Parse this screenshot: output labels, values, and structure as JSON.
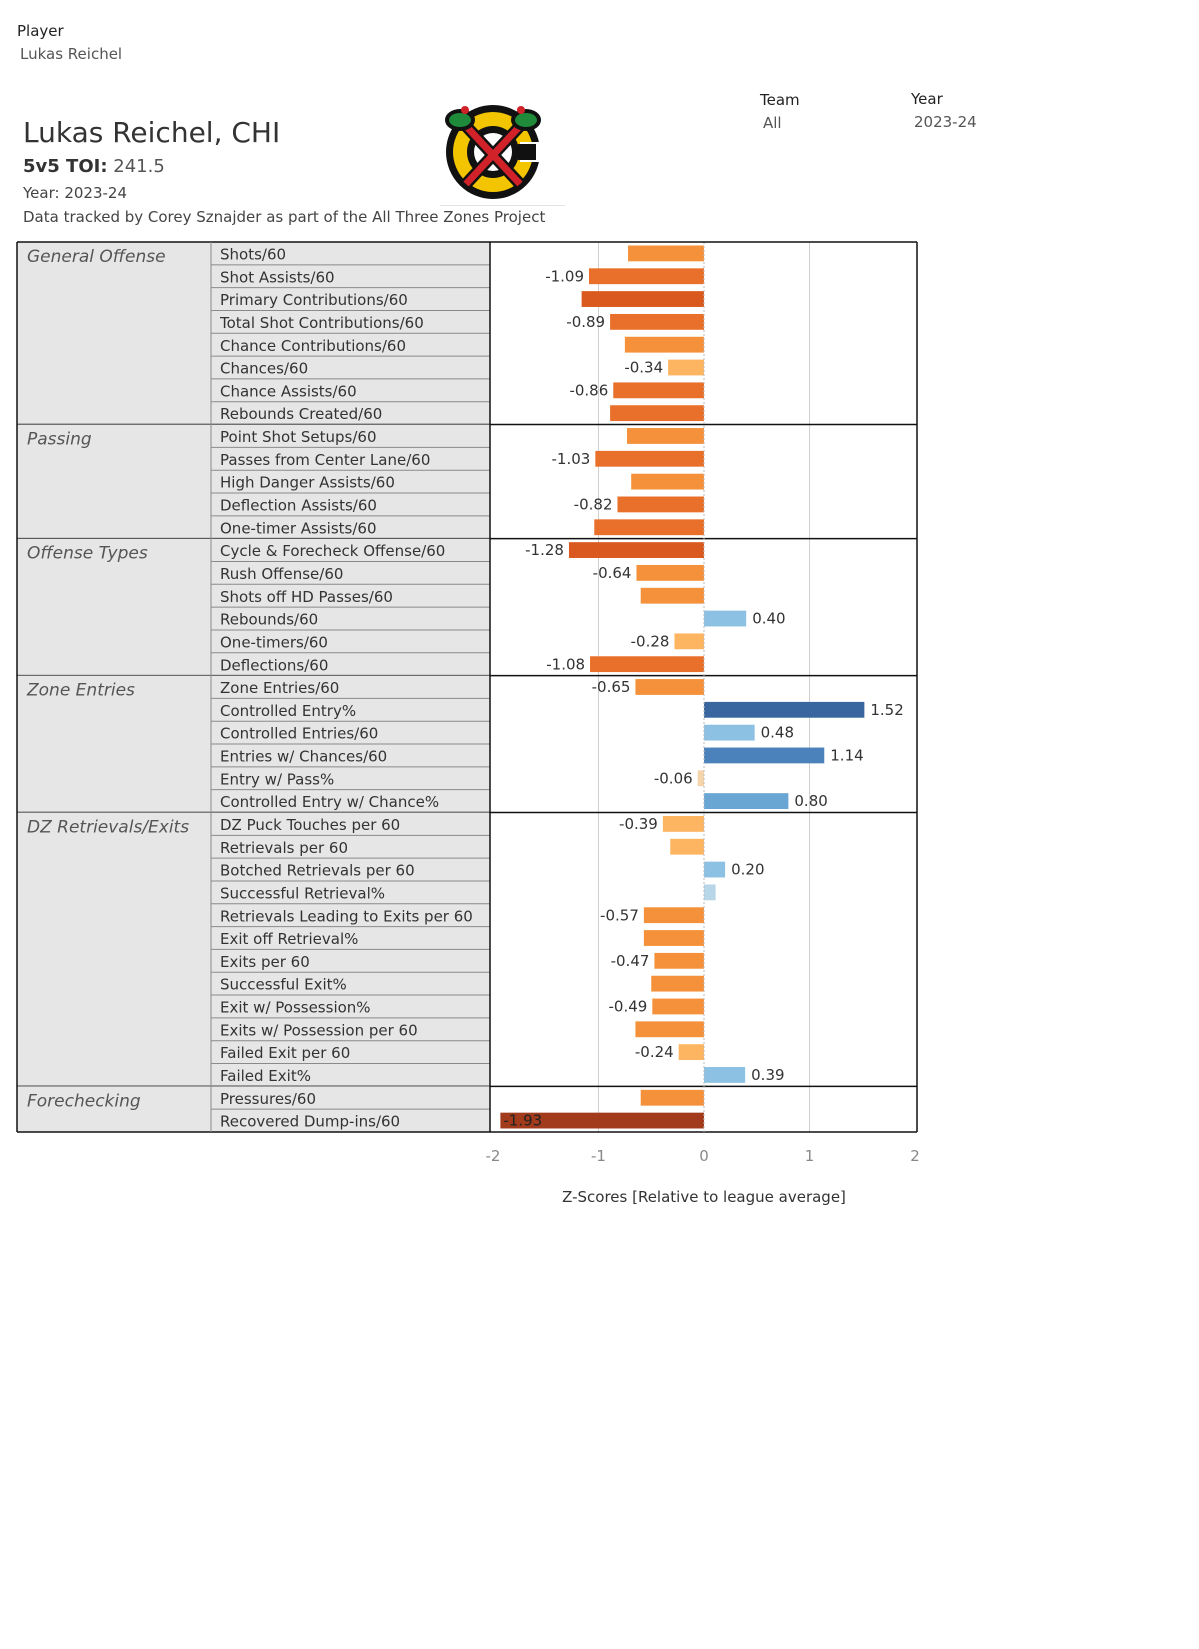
{
  "filters": {
    "player": {
      "label": "Player",
      "value": "Lukas Reichel"
    },
    "team": {
      "label": "Team",
      "value": "All"
    },
    "year": {
      "label": "Year",
      "value": "2023-24"
    }
  },
  "header": {
    "title": "Lukas Reichel, CHI",
    "toi_label": "5v5 TOI:",
    "toi_value": "241.5",
    "year_line": "Year: 2023-24",
    "credit": "Data tracked by Corey Sznajder as part of the All Three Zones Project"
  },
  "logo": {
    "icon": "chicago-blackhawks-logo-icon"
  },
  "colors": {
    "neg_strong": "#a23b1c",
    "neg_dark": "#d9591f",
    "neg_mid": "#e8702a",
    "neg_light": "#f4913a",
    "neg_pale": "#fdb562",
    "neg_faint": "#f5d3ab",
    "pos_faint": "#b7d6e8",
    "pos_light": "#8cc1e3",
    "pos_mid": "#6aa6d3",
    "pos_dark": "#4c82bc",
    "pos_strong": "#39669f",
    "section_bg": "#e6e6e6",
    "grid": "#d0d0d0"
  },
  "chart_data": {
    "type": "bar",
    "orientation": "horizontal",
    "xlabel": "Z-Scores [Relative to league average]",
    "xlim": [
      -2,
      2
    ],
    "xticks": [
      -2,
      -1,
      0,
      1,
      2
    ],
    "grid": true,
    "sections": [
      {
        "name": "General Offense",
        "metrics": [
          {
            "label": "Shots/60",
            "value": -0.72,
            "shown": null
          },
          {
            "label": "Shot Assists/60",
            "value": -1.09,
            "shown": "-1.09"
          },
          {
            "label": "Primary Contributions/60",
            "value": -1.16,
            "shown": null
          },
          {
            "label": "Total Shot Contributions/60",
            "value": -0.89,
            "shown": "-0.89"
          },
          {
            "label": "Chance Contributions/60",
            "value": -0.75,
            "shown": null
          },
          {
            "label": "Chances/60",
            "value": -0.34,
            "shown": "-0.34"
          },
          {
            "label": "Chance Assists/60",
            "value": -0.86,
            "shown": "-0.86"
          },
          {
            "label": "Rebounds Created/60",
            "value": -0.89,
            "shown": null
          }
        ]
      },
      {
        "name": "Passing",
        "metrics": [
          {
            "label": "Point Shot Setups/60",
            "value": -0.73,
            "shown": null
          },
          {
            "label": "Passes from Center Lane/60",
            "value": -1.03,
            "shown": "-1.03"
          },
          {
            "label": "High Danger Assists/60",
            "value": -0.69,
            "shown": null
          },
          {
            "label": "Deflection Assists/60",
            "value": -0.82,
            "shown": "-0.82"
          },
          {
            "label": "One-timer Assists/60",
            "value": -1.04,
            "shown": null
          }
        ]
      },
      {
        "name": "Offense Types",
        "metrics": [
          {
            "label": "Cycle & Forecheck Offense/60",
            "value": -1.28,
            "shown": "-1.28"
          },
          {
            "label": "Rush Offense/60",
            "value": -0.64,
            "shown": "-0.64"
          },
          {
            "label": "Shots off HD Passes/60",
            "value": -0.6,
            "shown": null
          },
          {
            "label": "Rebounds/60",
            "value": 0.4,
            "shown": "0.40"
          },
          {
            "label": "One-timers/60",
            "value": -0.28,
            "shown": "-0.28"
          },
          {
            "label": "Deflections/60",
            "value": -1.08,
            "shown": "-1.08"
          }
        ]
      },
      {
        "name": "Zone Entries",
        "metrics": [
          {
            "label": "Zone Entries/60",
            "value": -0.65,
            "shown": "-0.65"
          },
          {
            "label": "Controlled Entry%",
            "value": 1.52,
            "shown": "1.52"
          },
          {
            "label": "Controlled Entries/60",
            "value": 0.48,
            "shown": "0.48"
          },
          {
            "label": "Entries w/ Chances/60",
            "value": 1.14,
            "shown": "1.14"
          },
          {
            "label": "Entry w/ Pass%",
            "value": -0.06,
            "shown": "-0.06"
          },
          {
            "label": "Controlled Entry w/ Chance%",
            "value": 0.8,
            "shown": "0.80"
          }
        ]
      },
      {
        "name": "DZ Retrievals/Exits",
        "metrics": [
          {
            "label": "DZ Puck Touches per 60",
            "value": -0.39,
            "shown": "-0.39"
          },
          {
            "label": "Retrievals per 60",
            "value": -0.32,
            "shown": null
          },
          {
            "label": "Botched Retrievals per 60",
            "value": 0.2,
            "shown": "0.20"
          },
          {
            "label": "Successful Retrieval%",
            "value": 0.11,
            "shown": null
          },
          {
            "label": "Retrievals Leading to Exits per 60",
            "value": -0.57,
            "shown": "-0.57"
          },
          {
            "label": "Exit off Retrieval%",
            "value": -0.57,
            "shown": null
          },
          {
            "label": "Exits per 60",
            "value": -0.47,
            "shown": "-0.47"
          },
          {
            "label": "Successful Exit%",
            "value": -0.5,
            "shown": null
          },
          {
            "label": "Exit w/ Possession%",
            "value": -0.49,
            "shown": "-0.49"
          },
          {
            "label": "Exits w/ Possession per 60",
            "value": -0.65,
            "shown": null
          },
          {
            "label": "Failed Exit per 60",
            "value": -0.24,
            "shown": "-0.24"
          },
          {
            "label": "Failed Exit%",
            "value": 0.39,
            "shown": "0.39"
          }
        ]
      },
      {
        "name": "Forechecking",
        "metrics": [
          {
            "label": "Pressures/60",
            "value": -0.6,
            "shown": null
          },
          {
            "label": "Recovered Dump-ins/60",
            "value": -1.93,
            "shown": "-1.93"
          }
        ]
      }
    ]
  }
}
